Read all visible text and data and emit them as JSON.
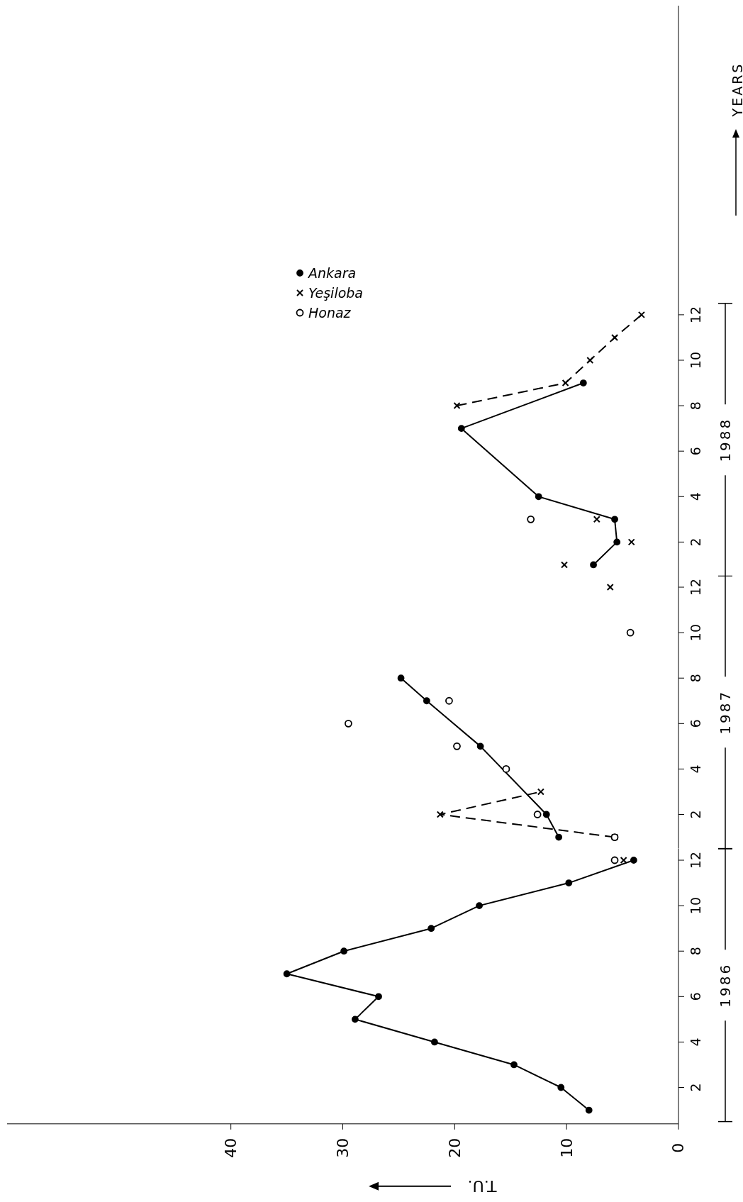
{
  "chart_data": [
    {
      "type": "line",
      "ylabel": "1988",
      "annotations": [
        "YEARS"
      ],
      "legend": "bottom left",
      "tick_labels": "y",
      "xticks": [
        0,
        10,
        20,
        30,
        40
      ],
      "ylim": [
        0.5,
        25.6
      ],
      "yticks": [
        2,
        4,
        6,
        8,
        10,
        12
      ],
      "series": [
        {
          "name": "Ankara",
          "color": "#000000",
          "marker": "circle",
          "line_style": "solid",
          "x": [
            7.6,
            5.5,
            5.7,
            12.5,
            19.4,
            8.5
          ],
          "values": [
            1,
            2,
            3,
            4,
            7,
            9
          ]
        },
        {
          "name": "Yeşiloba",
          "color": "#000000",
          "marker": "cross",
          "line_style": "dashed",
          "x": [
            10.2,
            null,
            4.2,
            null,
            7.3,
            null,
            19.8,
            10.1,
            7.9,
            5.7,
            3.3
          ],
          "values": [
            1,
            null,
            2,
            null,
            3,
            null,
            8,
            9,
            10,
            11,
            12
          ]
        },
        {
          "name": "Honaz",
          "type": "scatter",
          "color": "#000000",
          "marker": "circle",
          "x": [
            13.2
          ],
          "values": [
            3
          ]
        }
      ]
    },
    {
      "type": "line",
      "ylabel": "1987",
      "tick_labels": "y",
      "xticks": [
        0,
        10,
        20,
        30,
        40
      ],
      "ylim": [
        0.5,
        12.5
      ],
      "yticks": [
        2,
        4,
        6,
        8,
        10,
        12
      ],
      "series": [
        {
          "color": "#000000",
          "marker": "circle",
          "line_style": "solid",
          "x": [
            10.7,
            11.8,
            17.7,
            22.5,
            24.8
          ],
          "values": [
            1,
            2,
            5,
            7,
            8
          ]
        },
        {
          "color": "#000000",
          "marker": "cross",
          "line_style": "dashed",
          "x": [
            5.7,
            21.3,
            12.3,
            null,
            6.1
          ],
          "values": [
            1,
            2,
            3,
            null,
            12
          ]
        },
        {
          "type": "scatter",
          "color": "#000000",
          "marker": "circle",
          "x": [
            5.7,
            12.6,
            15.4,
            19.8,
            29.5,
            20.5,
            4.3
          ],
          "values": [
            1,
            2,
            4,
            5,
            6,
            7,
            10
          ]
        }
      ]
    },
    {
      "type": "line",
      "ylabel": "1986",
      "xlabel": "T.U.",
      "xlim": [
        60,
        0
      ],
      "xticks": [
        0,
        10,
        20,
        30,
        40
      ],
      "ylim": [
        0.4,
        12.5
      ],
      "yticks": [
        2,
        4,
        6,
        8,
        10,
        12
      ],
      "series": [
        {
          "color": "#000000",
          "marker": "circle",
          "line_style": "solid",
          "x": [
            8,
            10.5,
            14.7,
            21.8,
            28.9,
            26.8,
            35,
            29.9,
            22.1,
            17.8,
            9.8,
            4
          ],
          "values": [
            1,
            2,
            3,
            4,
            5,
            6,
            7,
            8,
            9,
            10,
            11,
            12
          ]
        },
        {
          "color": "#000000",
          "marker": "cross",
          "line_style": "dashed",
          "x": [
            4.9
          ],
          "values": [
            12
          ]
        },
        {
          "type": "scatter",
          "color": "#000000",
          "marker": "circle",
          "x": [
            5.7
          ],
          "values": [
            12
          ]
        }
      ]
    }
  ]
}
